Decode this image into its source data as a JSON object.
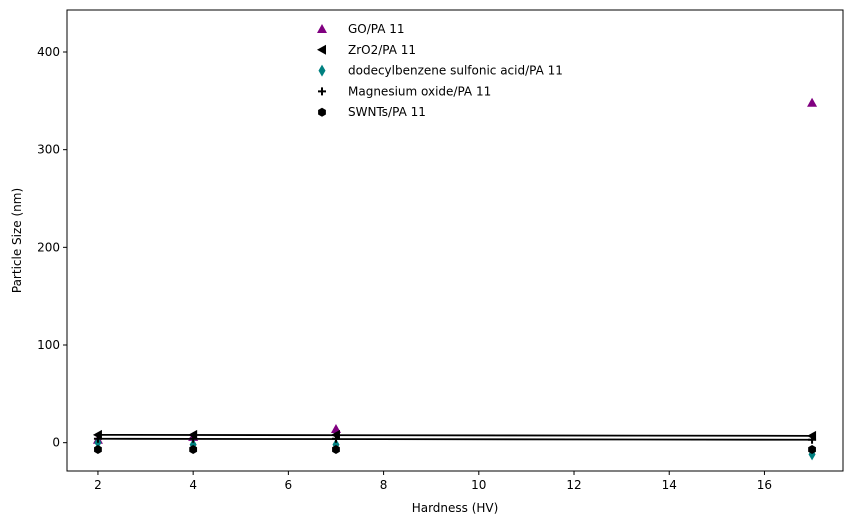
{
  "chart_data": {
    "type": "scatter",
    "title": "",
    "xlabel": "Hardness (HV)",
    "ylabel": "Particle Size (nm)",
    "xlim": [
      1.35,
      17.65
    ],
    "ylim": [
      -29,
      443
    ],
    "xticks": [
      2,
      4,
      6,
      8,
      10,
      12,
      14,
      16
    ],
    "yticks": [
      0,
      100,
      200,
      300,
      400
    ],
    "grid": false,
    "legend_position": "top-center",
    "series": [
      {
        "name": "GO/PA 11",
        "marker": "triangle-up",
        "color": "#800080",
        "x": [
          2,
          4,
          7,
          17
        ],
        "y": [
          3,
          6,
          14,
          348
        ]
      },
      {
        "name": "ZrO2/PA 11",
        "marker": "triangle-left",
        "color": "#000000",
        "x": [
          2,
          4,
          7,
          17
        ],
        "y": [
          8,
          8,
          8,
          7
        ]
      },
      {
        "name": "dodecylbenzene sulfonic acid/PA 11",
        "marker": "diamond-thin",
        "color": "#008080",
        "x": [
          2,
          4,
          7,
          17
        ],
        "y": [
          0,
          -2,
          -2,
          -12
        ]
      },
      {
        "name": "Magnesium oxide/PA 11",
        "marker": "plus",
        "color": "#000000",
        "x": [
          2,
          4,
          7,
          17
        ],
        "y": [
          4,
          4,
          4,
          3
        ]
      },
      {
        "name": "SWNTs/PA 11",
        "marker": "hexagon",
        "color": "#000000",
        "x": [
          2,
          4,
          7,
          17
        ],
        "y": [
          -7,
          -7,
          -7,
          -7
        ]
      }
    ],
    "lines": [
      {
        "color": "#000000",
        "x": [
          2,
          17
        ],
        "y": [
          8,
          7
        ]
      },
      {
        "color": "#000000",
        "x": [
          2,
          17
        ],
        "y": [
          4,
          3
        ]
      }
    ]
  }
}
